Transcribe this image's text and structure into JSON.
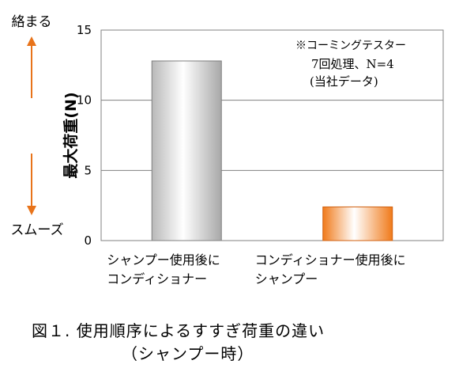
{
  "chart_data": {
    "type": "bar",
    "categories": [
      [
        "シャンプー使用後に",
        "コンディショナー"
      ],
      [
        "コンディショナー使用後に",
        "シャンプー"
      ]
    ],
    "values": [
      12.8,
      2.4
    ],
    "bar_colors": [
      "#cfcfcf",
      "#f08020"
    ],
    "ylabel": "最大荷重(N)",
    "ylim": [
      0,
      15
    ],
    "yticks": [
      0,
      5,
      10,
      15
    ],
    "grid": true,
    "annotation": [
      "※コーミングテスター",
      "7回処理、N=4",
      "(当社データ)"
    ]
  },
  "indicators": {
    "top_label": "絡まる",
    "bottom_label": "スムーズ",
    "arrow_color": "#e8731a"
  },
  "caption": {
    "line1": "図１. 使用順序によるすすぎ荷重の違い",
    "line2": "（シャンプー時）"
  }
}
